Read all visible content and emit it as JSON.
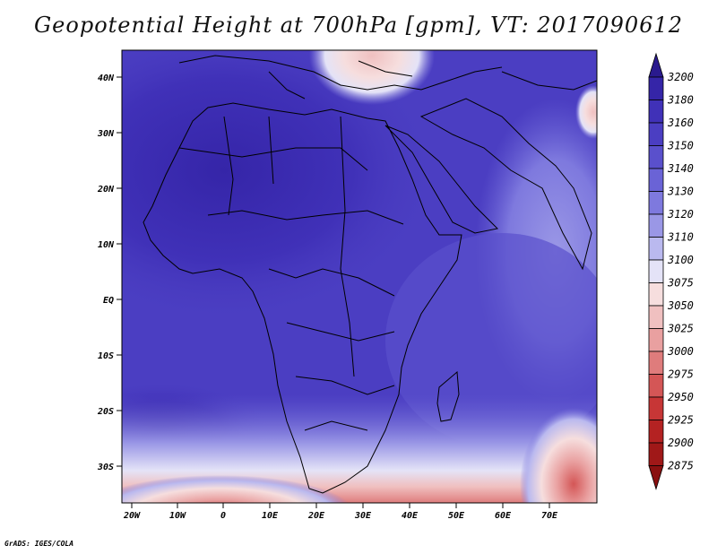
{
  "title": "Geopotential Height at 700hPa [gpm], VT: 2017090612",
  "lat_labels": [
    "40N",
    "30N",
    "20N",
    "10N",
    "EQ",
    "10S",
    "20S",
    "30S"
  ],
  "lon_labels": [
    "20W",
    "10W",
    "0",
    "10E",
    "20E",
    "30E",
    "40E",
    "50E",
    "60E",
    "70E"
  ],
  "colorbar": {
    "levels": [
      "3200",
      "3180",
      "3160",
      "3150",
      "3140",
      "3130",
      "3120",
      "3110",
      "3100",
      "3075",
      "3050",
      "3025",
      "3000",
      "2975",
      "2950",
      "2925",
      "2900",
      "2875"
    ],
    "colors": [
      "#2a1a8e",
      "#3525a8",
      "#4031b8",
      "#4b3ec2",
      "#5a50cc",
      "#6a63d6",
      "#7e79de",
      "#9a97e6",
      "#bab9ef",
      "#e4e3f7",
      "#f6dede",
      "#f0c0c0",
      "#e9a0a0",
      "#df7c7c",
      "#d45656",
      "#c73636",
      "#b42222",
      "#a01818",
      "#8a1010"
    ]
  },
  "credit": "GrADS: IGES/COLA"
}
